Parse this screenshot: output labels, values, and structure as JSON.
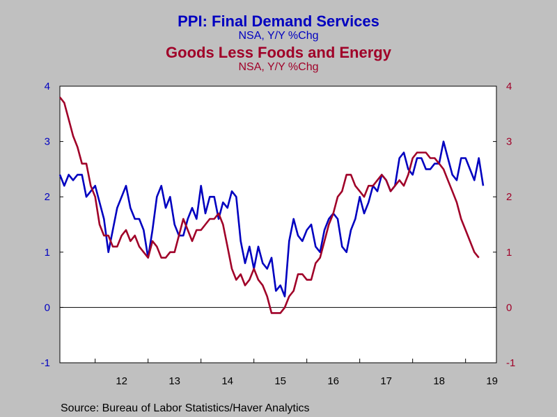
{
  "colors": {
    "services": "#0000c0",
    "goods": "#a00028",
    "background": "#c0c0c0",
    "plot": "#ffffff"
  },
  "chart_data": {
    "type": "line",
    "title": "PPI: Final Demand Services",
    "title_subtitle": "NSA, Y/Y %Chg",
    "title2": "Goods Less Foods and Energy",
    "title2_subtitle": "NSA, Y/Y %Chg",
    "source": "Source:  Bureau of Labor Statistics/Haver Analytics",
    "ylim": [
      -1,
      4
    ],
    "yticks": [
      -1,
      0,
      1,
      2,
      3,
      4
    ],
    "xlim": [
      2011.3333,
      2019.5833
    ],
    "xticks": [
      {
        "label": "12",
        "center": 2012.5
      },
      {
        "label": "13",
        "center": 2013.5
      },
      {
        "label": "14",
        "center": 2014.5
      },
      {
        "label": "15",
        "center": 2015.5
      },
      {
        "label": "16",
        "center": 2016.5
      },
      {
        "label": "17",
        "center": 2017.5
      },
      {
        "label": "18",
        "center": 2018.5
      },
      {
        "label": "19",
        "center": 2019.5
      }
    ],
    "grid": false,
    "start": "2011-05",
    "series": [
      {
        "name": "PPI: Final Demand Services",
        "axis": "left",
        "values": [
          2.4,
          2.2,
          2.4,
          2.3,
          2.4,
          2.4,
          2.0,
          2.1,
          2.2,
          1.9,
          1.6,
          1.0,
          1.4,
          1.8,
          2.0,
          2.2,
          1.8,
          1.6,
          1.6,
          1.4,
          0.9,
          1.4,
          2.0,
          2.2,
          1.8,
          2.0,
          1.5,
          1.3,
          1.3,
          1.6,
          1.8,
          1.6,
          2.2,
          1.7,
          2.0,
          2.0,
          1.6,
          1.9,
          1.8,
          2.1,
          2.0,
          1.2,
          0.8,
          1.1,
          0.7,
          1.1,
          0.8,
          0.7,
          0.9,
          0.3,
          0.4,
          0.2,
          1.2,
          1.6,
          1.3,
          1.2,
          1.4,
          1.5,
          1.1,
          1.0,
          1.4,
          1.6,
          1.7,
          1.6,
          1.1,
          1.0,
          1.4,
          1.6,
          2.0,
          1.7,
          1.9,
          2.2,
          2.1,
          2.4,
          2.3,
          2.1,
          2.2,
          2.7,
          2.8,
          2.5,
          2.4,
          2.7,
          2.7,
          2.5,
          2.5,
          2.6,
          2.6,
          3.0,
          2.7,
          2.4,
          2.3,
          2.7,
          2.7,
          2.5,
          2.3,
          2.7,
          2.2
        ]
      },
      {
        "name": "Goods Less Foods and Energy",
        "axis": "right",
        "values": [
          3.8,
          3.7,
          3.4,
          3.1,
          2.9,
          2.6,
          2.6,
          2.2,
          2.0,
          1.5,
          1.3,
          1.3,
          1.1,
          1.1,
          1.3,
          1.4,
          1.2,
          1.3,
          1.1,
          1.0,
          0.9,
          1.2,
          1.1,
          0.9,
          0.9,
          1.0,
          1.0,
          1.3,
          1.6,
          1.4,
          1.2,
          1.4,
          1.4,
          1.5,
          1.6,
          1.6,
          1.7,
          1.5,
          1.1,
          0.7,
          0.5,
          0.6,
          0.4,
          0.5,
          0.7,
          0.5,
          0.4,
          0.2,
          -0.1,
          -0.1,
          -0.1,
          0.0,
          0.2,
          0.3,
          0.6,
          0.6,
          0.5,
          0.5,
          0.8,
          0.9,
          1.2,
          1.5,
          1.7,
          2.0,
          2.1,
          2.4,
          2.4,
          2.2,
          2.1,
          2.0,
          2.2,
          2.2,
          2.3,
          2.4,
          2.3,
          2.1,
          2.2,
          2.3,
          2.2,
          2.4,
          2.7,
          2.8,
          2.8,
          2.8,
          2.7,
          2.7,
          2.6,
          2.5,
          2.3,
          2.1,
          1.9,
          1.6,
          1.4,
          1.2,
          1.0,
          0.9
        ]
      }
    ]
  }
}
